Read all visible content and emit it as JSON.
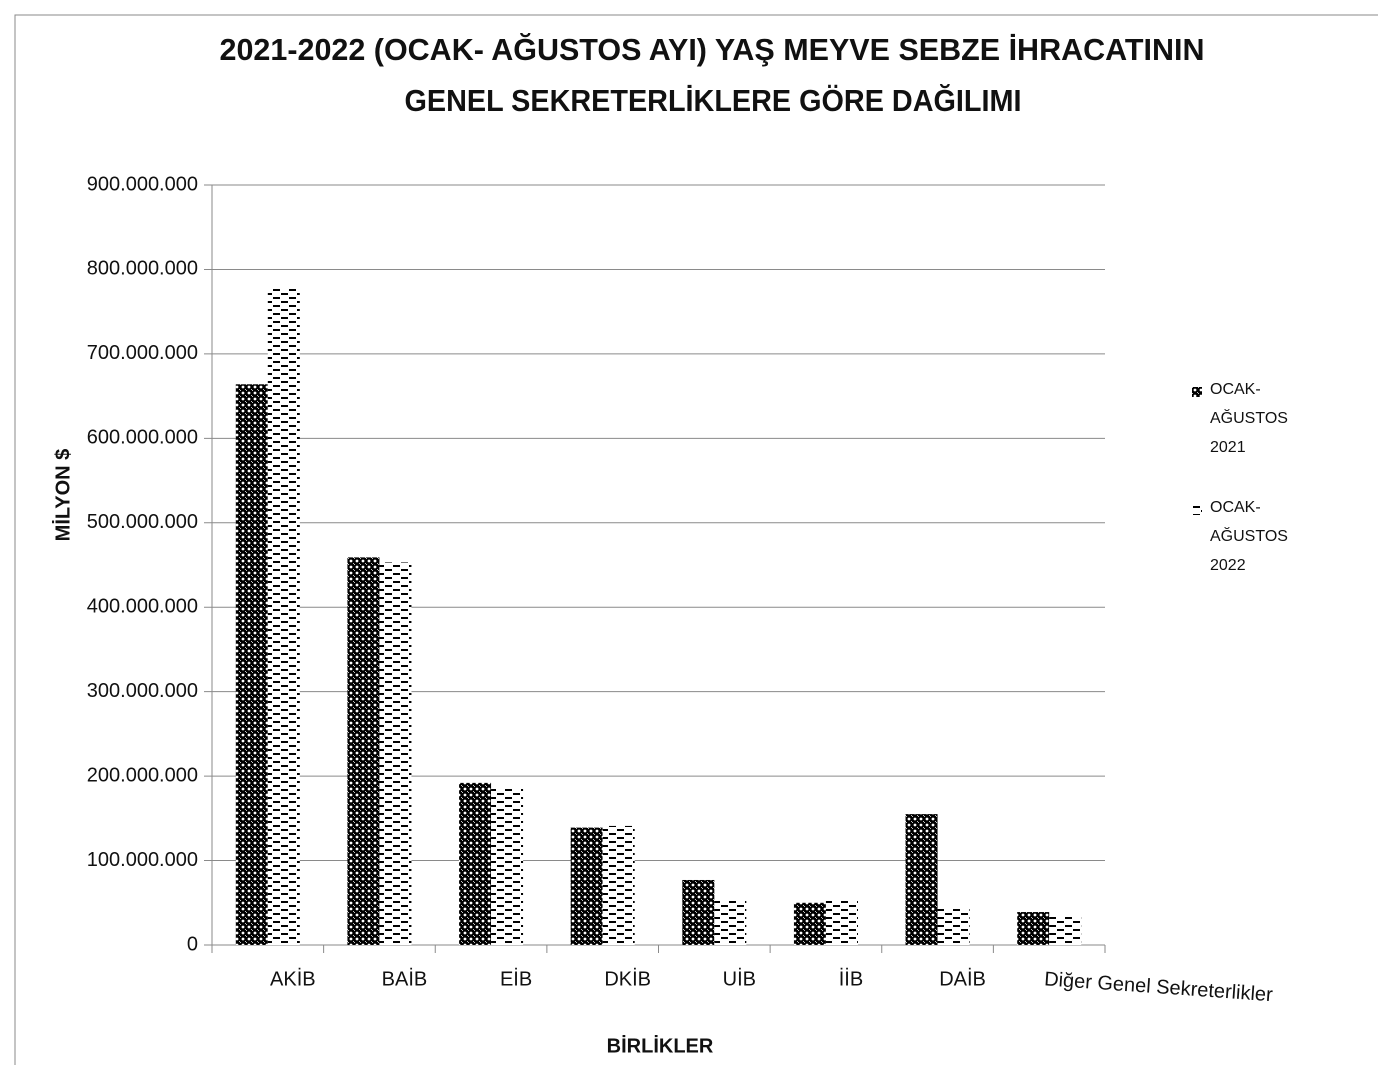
{
  "chart_data": {
    "type": "bar",
    "title": [
      "2021-2022 (OCAK- AĞUSTOS AYI) YAŞ MEYVE SEBZE İHRACATININ",
      "GENEL SEKRETERLİKLERE GÖRE DAĞILIMI"
    ],
    "y_label": "MİLYON $",
    "x_label": "BİRLİKLER",
    "categories": [
      "AKİB",
      "BAİB",
      "EİB",
      "DKİB",
      "UİB",
      "İİB",
      "DAİB",
      "Diğer Genel Sekreterlikler"
    ],
    "series": [
      {
        "name": "OCAK- AĞUSTOS 2021",
        "color": "#000000",
        "pattern": "crosshatch",
        "values": [
          664000000,
          459000000,
          192000000,
          139000000,
          77000000,
          50000000,
          155000000,
          39000000
        ]
      },
      {
        "name": "OCAK- AĞUSTOS 2022",
        "color": "#000000",
        "pattern": "dashes",
        "values": [
          779000000,
          453000000,
          185000000,
          141000000,
          54000000,
          54000000,
          43000000,
          34000000
        ]
      }
    ],
    "ylim": [
      0,
      900000000
    ],
    "yticks": [
      0,
      {
        "value": 100000000,
        "label": "100.000.000"
      },
      {
        "value": 200000000,
        "label": "200.000.000"
      },
      {
        "value": 300000000,
        "label": "300.000.000"
      },
      {
        "value": 400000000,
        "label": "400.000.000"
      },
      {
        "value": 500000000,
        "label": "500.000.000"
      },
      {
        "value": 600000000,
        "label": "600.000.000"
      },
      {
        "value": 700000000,
        "label": "700.000.000"
      },
      {
        "value": 800000000,
        "label": "800.000.000"
      },
      {
        "value": 900000000,
        "label": "900.000.000"
      }
    ],
    "grid": true,
    "legend": "right"
  }
}
